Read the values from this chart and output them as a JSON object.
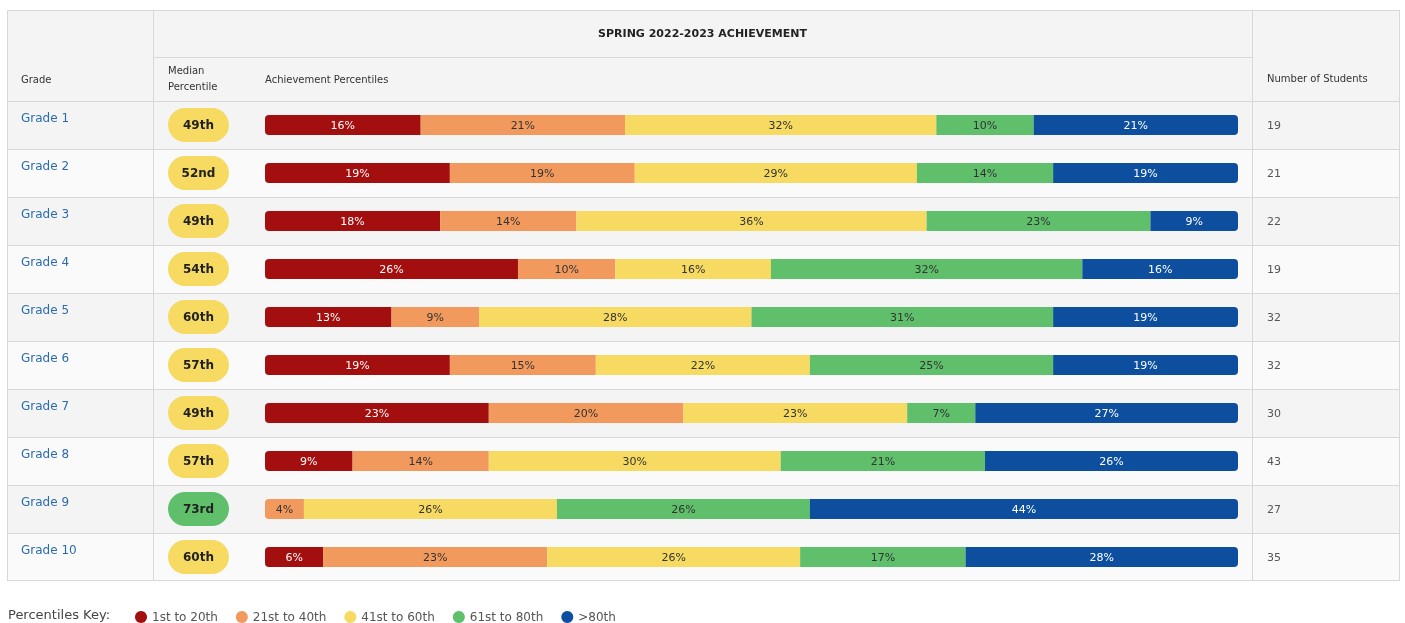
{
  "chart_data": {
    "type": "bar",
    "title": "SPRING 2022-2023 ACHIEVEMENT",
    "ylabel": "Grade",
    "xlabel": "Achievement Percentiles",
    "legend_title": "Percentiles Key:",
    "categories": [
      "Grade 1",
      "Grade 2",
      "Grade 3",
      "Grade 4",
      "Grade 5",
      "Grade 6",
      "Grade 7",
      "Grade 8",
      "Grade 9",
      "Grade 10"
    ],
    "stacked": true,
    "orientation": "horizontal",
    "xlim": [
      0,
      100
    ],
    "tick_labels": "y",
    "legend": "bottom",
    "grid": false,
    "series": [
      {
        "name": "1st to 20th",
        "color": "#a30f0f",
        "values": [
          16,
          19,
          18,
          26,
          13,
          19,
          23,
          9,
          null,
          6
        ],
        "value_labels": [
          "16%",
          "19%",
          "18%",
          "26%",
          "13%",
          "19%",
          "23%",
          "9%",
          null,
          "6%"
        ]
      },
      {
        "name": "21st to 40th",
        "color": "#f29a5e",
        "values": [
          21,
          19,
          14,
          10,
          9,
          15,
          20,
          14,
          4,
          23
        ],
        "value_labels": [
          "21%",
          "19%",
          "14%",
          "10%",
          "9%",
          "15%",
          "20%",
          "14%",
          "4%",
          "23%"
        ]
      },
      {
        "name": "41st to 60th",
        "color": "#f6da62",
        "values": [
          32,
          29,
          36,
          16,
          28,
          22,
          23,
          30,
          26,
          26
        ],
        "value_labels": [
          "32%",
          "29%",
          "36%",
          "16%",
          "28%",
          "22%",
          "23%",
          "30%",
          "26%",
          "26%"
        ]
      },
      {
        "name": "61st to 80th",
        "color": "#5fbf6b",
        "values": [
          10,
          14,
          23,
          32,
          31,
          25,
          7,
          21,
          26,
          17
        ],
        "value_labels": [
          "10%",
          "14%",
          "23%",
          "32%",
          "31%",
          "25%",
          "7%",
          "21%",
          "26%",
          "17%"
        ]
      },
      {
        "name": ">80th",
        "color": "#0d4f9e",
        "values": [
          21,
          19,
          9,
          16,
          19,
          19,
          27,
          26,
          44,
          28
        ],
        "value_labels": [
          "21%",
          "19%",
          "9%",
          "16%",
          "19%",
          "19%",
          "27%",
          "26%",
          "44%",
          "28%"
        ]
      }
    ],
    "annotations": [
      "Median Percentile",
      "Number of Students",
      "49th",
      "52nd",
      "49th",
      "54th",
      "60th",
      "57th",
      "49th",
      "57th",
      "73rd",
      "60th",
      "19",
      "21",
      "22",
      "19",
      "32",
      "32",
      "30",
      "43",
      "27",
      "35"
    ]
  }
}
